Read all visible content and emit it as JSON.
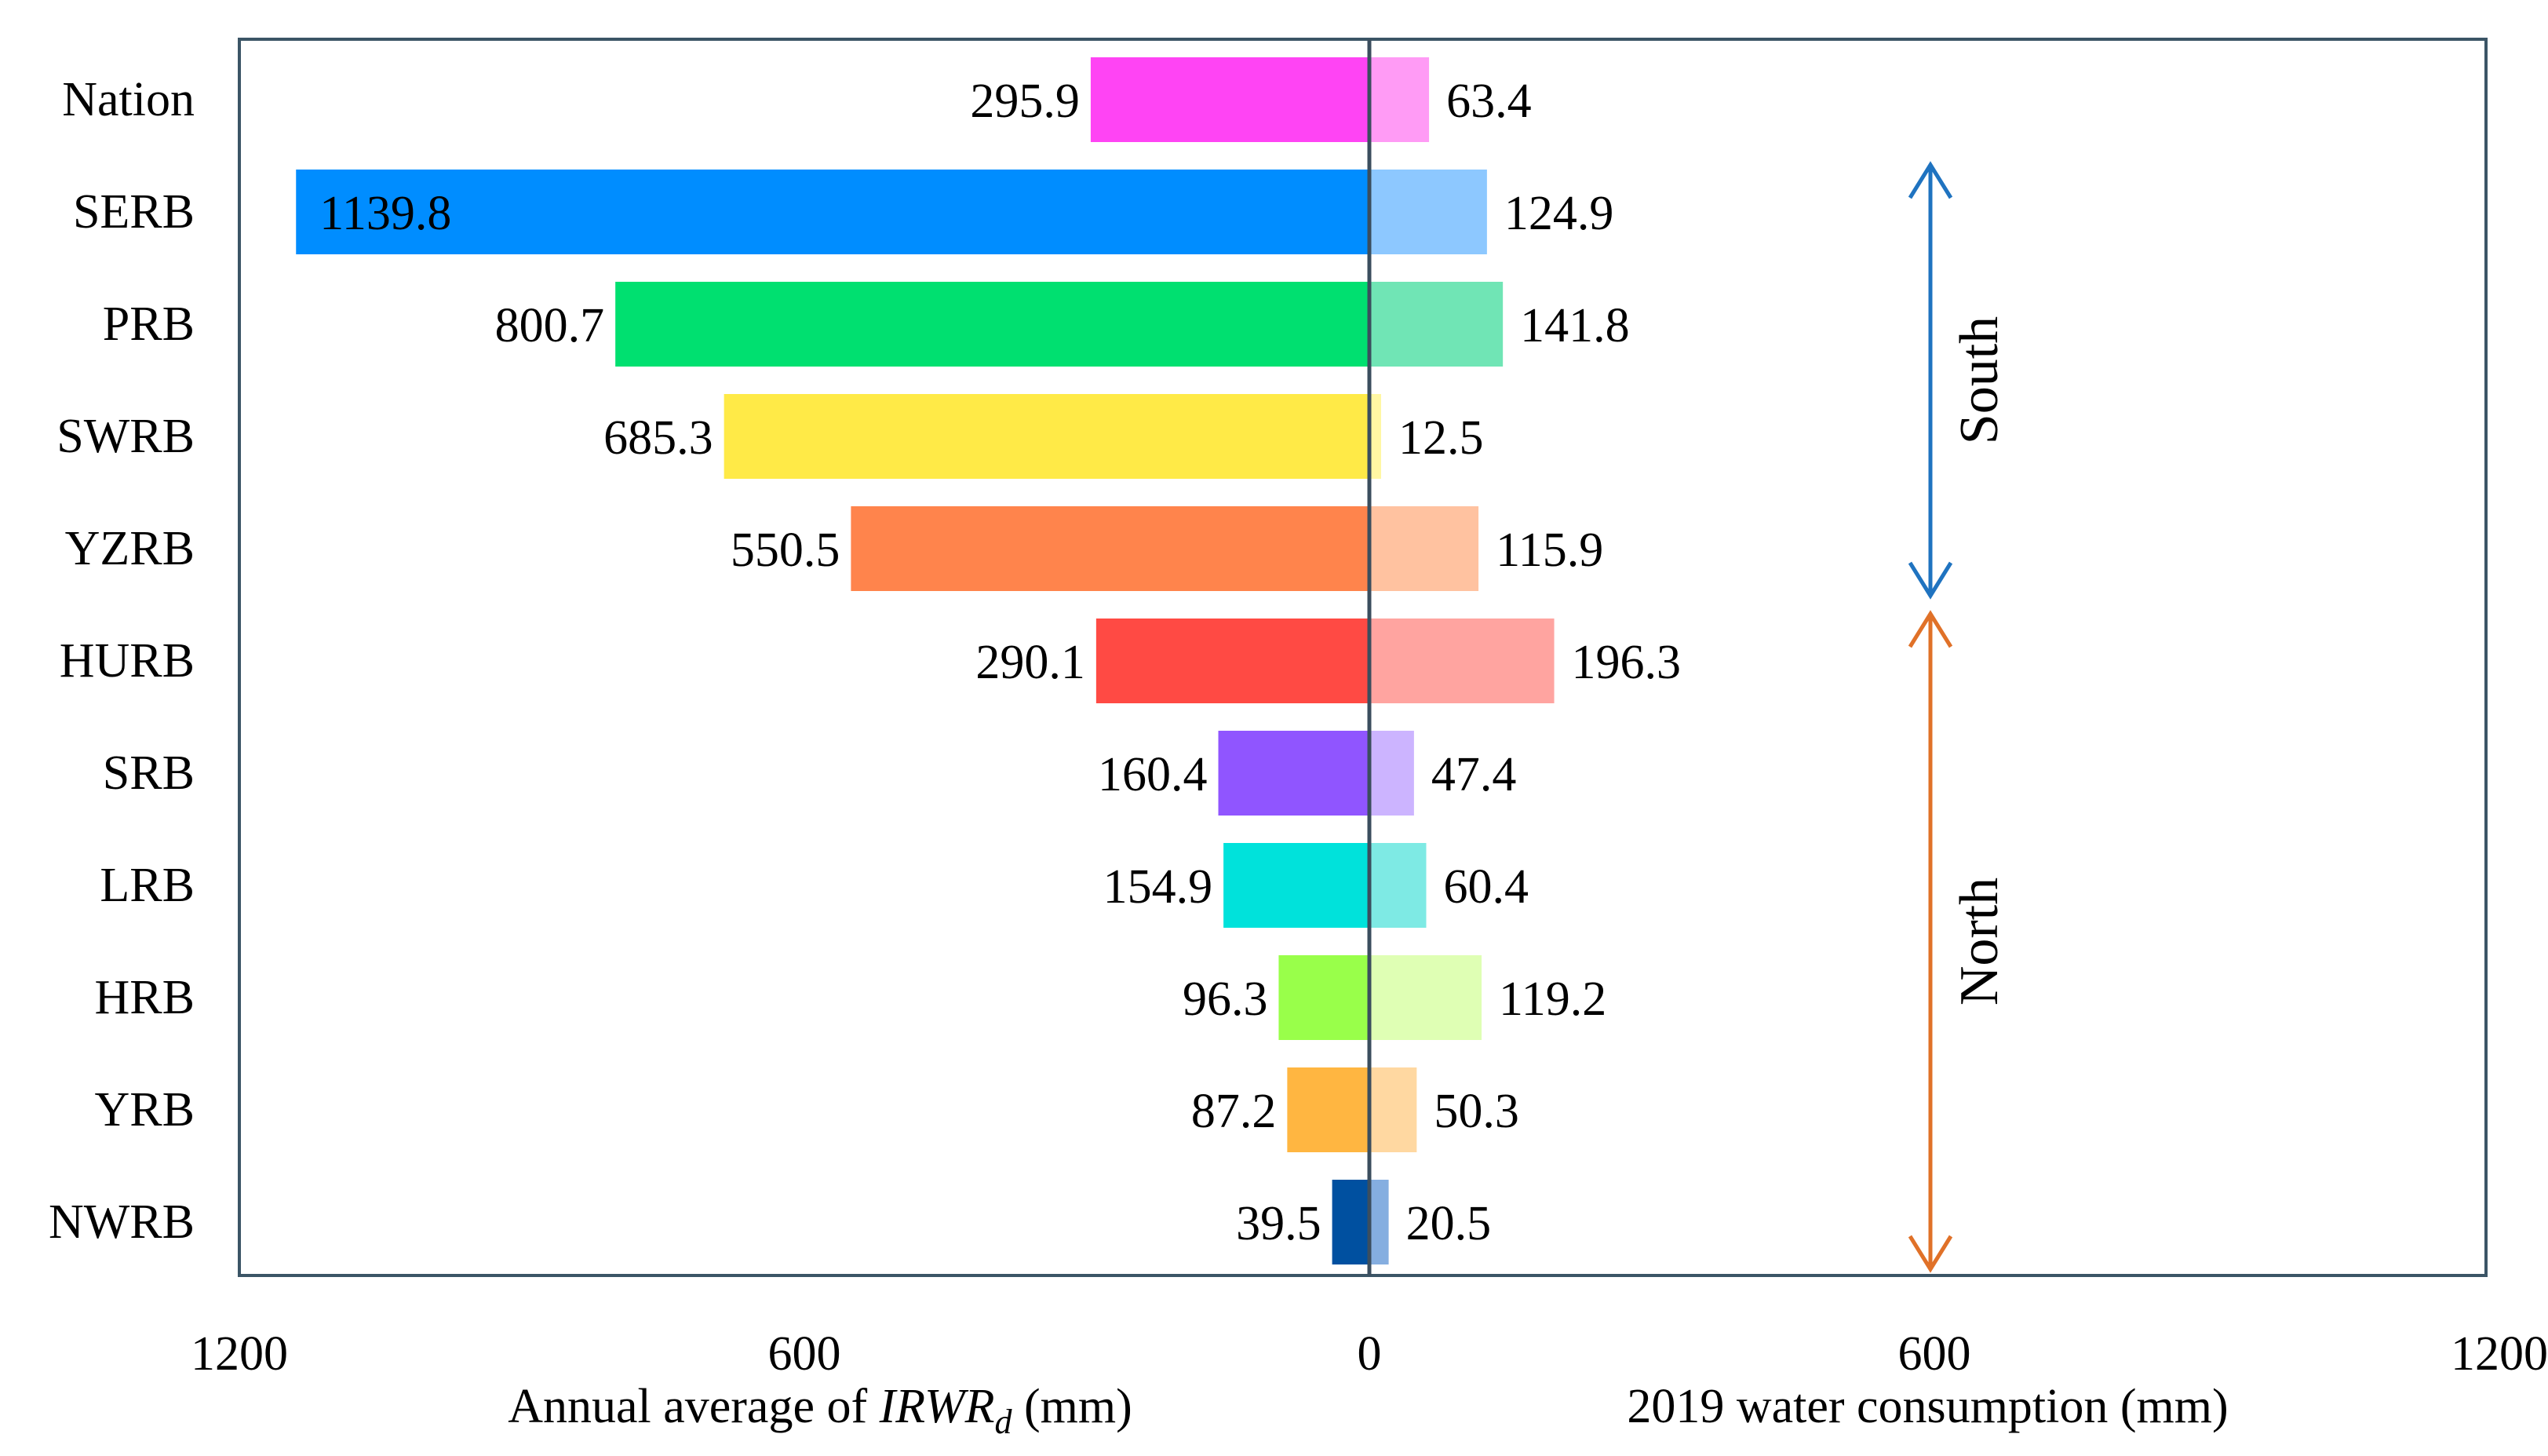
{
  "chart_data": {
    "type": "bar",
    "orientation": "horizontal-diverging",
    "categories": [
      "Nation",
      "SERB",
      "PRB",
      "SWRB",
      "YZRB",
      "HURB",
      "SRB",
      "LRB",
      "HRB",
      "YRB",
      "NWRB"
    ],
    "series": [
      {
        "side": "left",
        "values": [
          295.9,
          1139.8,
          800.7,
          685.3,
          550.5,
          290.1,
          160.4,
          154.9,
          96.3,
          87.2,
          39.5
        ],
        "colors": [
          "#FF44F4",
          "#008DFF",
          "#00E070",
          "#FFEA47",
          "#FF844C",
          "#FF4A44",
          "#9055FF",
          "#00E2DB",
          "#99FF4A",
          "#FFB641",
          "#0050A0"
        ]
      },
      {
        "side": "right",
        "values": [
          63.4,
          124.9,
          141.8,
          12.5,
          115.9,
          196.3,
          47.4,
          60.4,
          119.2,
          50.3,
          20.5
        ],
        "colors": [
          "#FF9BF5",
          "#8DC8FF",
          "#70E5B5",
          "#FFF7A3",
          "#FFC2A0",
          "#FFA4A0",
          "#CCB4FF",
          "#7EEAE4",
          "#DFFFB4",
          "#FFD8A1",
          "#85AEE0"
        ]
      }
    ],
    "left_axis": {
      "label_prefix": "Annual average of ",
      "label_var": "IRWR",
      "label_sub": "d",
      "label_suffix": " (mm)",
      "ticks": [
        "1200",
        "600",
        "0"
      ],
      "range": [
        0,
        1200
      ]
    },
    "right_axis": {
      "label": "2019 water consumption (mm)",
      "ticks": [
        "600",
        "1200"
      ],
      "range": [
        0,
        1200
      ]
    },
    "annotations": [
      {
        "text": "South",
        "color": "#1F73C0",
        "from_category": "SERB",
        "to_category": "YZRB"
      },
      {
        "text": "North",
        "color": "#E07128",
        "from_category": "HURB",
        "to_category": "NWRB"
      }
    ],
    "grid": false,
    "legend": "none"
  }
}
